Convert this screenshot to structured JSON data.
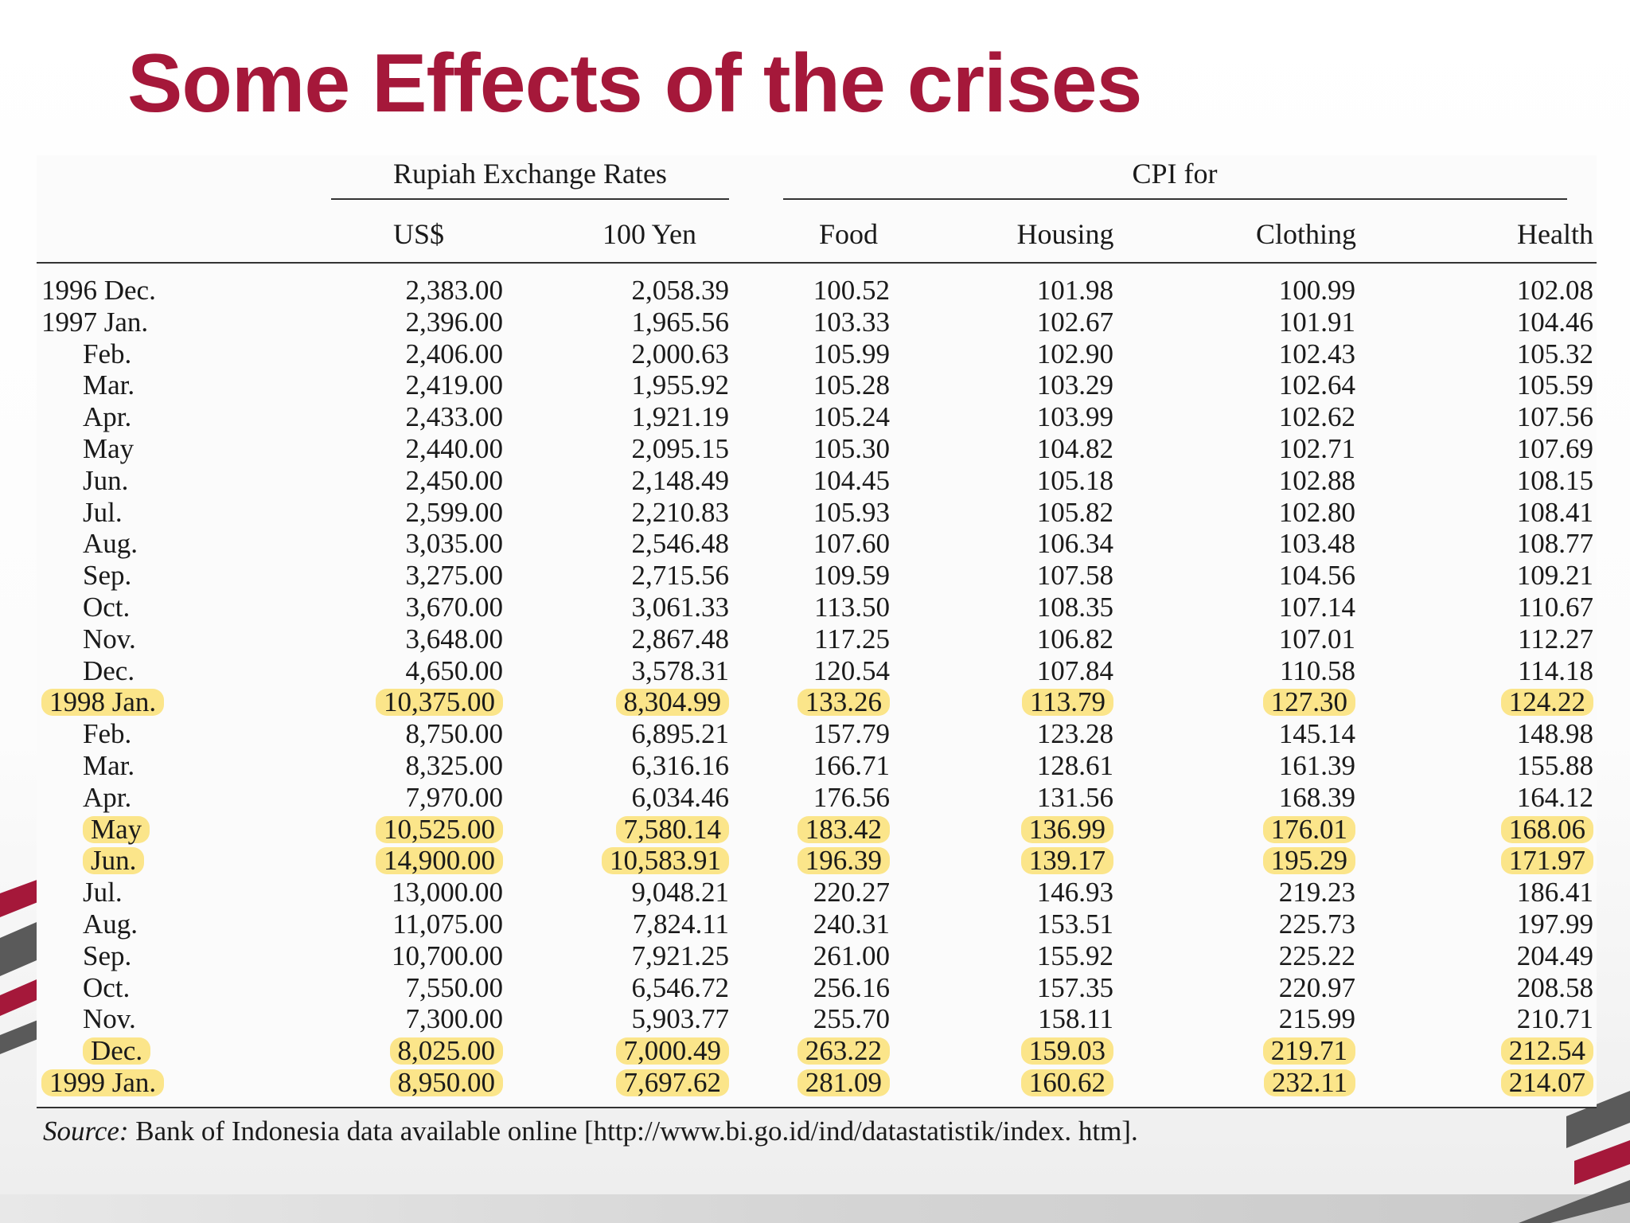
{
  "title": "Some Effects of the crises",
  "table": {
    "group_headers": {
      "rupiah": "Rupiah Exchange Rates",
      "cpi": "CPI for"
    },
    "columns": [
      "US$",
      "100 Yen",
      "Food",
      "Housing",
      "Clothing",
      "Health"
    ],
    "rows": [
      {
        "label": "1996 Dec.",
        "indent": false,
        "highlight": false,
        "values": [
          "2,383.00",
          "2,058.39",
          "100.52",
          "101.98",
          "100.99",
          "102.08"
        ]
      },
      {
        "label": "1997 Jan.",
        "indent": false,
        "highlight": false,
        "values": [
          "2,396.00",
          "1,965.56",
          "103.33",
          "102.67",
          "101.91",
          "104.46"
        ]
      },
      {
        "label": "Feb.",
        "indent": true,
        "highlight": false,
        "values": [
          "2,406.00",
          "2,000.63",
          "105.99",
          "102.90",
          "102.43",
          "105.32"
        ]
      },
      {
        "label": "Mar.",
        "indent": true,
        "highlight": false,
        "values": [
          "2,419.00",
          "1,955.92",
          "105.28",
          "103.29",
          "102.64",
          "105.59"
        ]
      },
      {
        "label": "Apr.",
        "indent": true,
        "highlight": false,
        "values": [
          "2,433.00",
          "1,921.19",
          "105.24",
          "103.99",
          "102.62",
          "107.56"
        ]
      },
      {
        "label": "May",
        "indent": true,
        "highlight": false,
        "values": [
          "2,440.00",
          "2,095.15",
          "105.30",
          "104.82",
          "102.71",
          "107.69"
        ]
      },
      {
        "label": "Jun.",
        "indent": true,
        "highlight": false,
        "values": [
          "2,450.00",
          "2,148.49",
          "104.45",
          "105.18",
          "102.88",
          "108.15"
        ]
      },
      {
        "label": "Jul.",
        "indent": true,
        "highlight": false,
        "values": [
          "2,599.00",
          "2,210.83",
          "105.93",
          "105.82",
          "102.80",
          "108.41"
        ]
      },
      {
        "label": "Aug.",
        "indent": true,
        "highlight": false,
        "values": [
          "3,035.00",
          "2,546.48",
          "107.60",
          "106.34",
          "103.48",
          "108.77"
        ]
      },
      {
        "label": "Sep.",
        "indent": true,
        "highlight": false,
        "values": [
          "3,275.00",
          "2,715.56",
          "109.59",
          "107.58",
          "104.56",
          "109.21"
        ]
      },
      {
        "label": "Oct.",
        "indent": true,
        "highlight": false,
        "values": [
          "3,670.00",
          "3,061.33",
          "113.50",
          "108.35",
          "107.14",
          "110.67"
        ]
      },
      {
        "label": "Nov.",
        "indent": true,
        "highlight": false,
        "values": [
          "3,648.00",
          "2,867.48",
          "117.25",
          "106.82",
          "107.01",
          "112.27"
        ]
      },
      {
        "label": "Dec.",
        "indent": true,
        "highlight": false,
        "values": [
          "4,650.00",
          "3,578.31",
          "120.54",
          "107.84",
          "110.58",
          "114.18"
        ]
      },
      {
        "label": "1998 Jan.",
        "indent": false,
        "highlight": true,
        "values": [
          "10,375.00",
          "8,304.99",
          "133.26",
          "113.79",
          "127.30",
          "124.22"
        ]
      },
      {
        "label": "Feb.",
        "indent": true,
        "highlight": false,
        "values": [
          "8,750.00",
          "6,895.21",
          "157.79",
          "123.28",
          "145.14",
          "148.98"
        ]
      },
      {
        "label": "Mar.",
        "indent": true,
        "highlight": false,
        "values": [
          "8,325.00",
          "6,316.16",
          "166.71",
          "128.61",
          "161.39",
          "155.88"
        ]
      },
      {
        "label": "Apr.",
        "indent": true,
        "highlight": false,
        "values": [
          "7,970.00",
          "6,034.46",
          "176.56",
          "131.56",
          "168.39",
          "164.12"
        ]
      },
      {
        "label": "May",
        "indent": true,
        "highlight": true,
        "values": [
          "10,525.00",
          "7,580.14",
          "183.42",
          "136.99",
          "176.01",
          "168.06"
        ]
      },
      {
        "label": "Jun.",
        "indent": true,
        "highlight": true,
        "values": [
          "14,900.00",
          "10,583.91",
          "196.39",
          "139.17",
          "195.29",
          "171.97"
        ]
      },
      {
        "label": "Jul.",
        "indent": true,
        "highlight": false,
        "values": [
          "13,000.00",
          "9,048.21",
          "220.27",
          "146.93",
          "219.23",
          "186.41"
        ]
      },
      {
        "label": "Aug.",
        "indent": true,
        "highlight": false,
        "values": [
          "11,075.00",
          "7,824.11",
          "240.31",
          "153.51",
          "225.73",
          "197.99"
        ]
      },
      {
        "label": "Sep.",
        "indent": true,
        "highlight": false,
        "values": [
          "10,700.00",
          "7,921.25",
          "261.00",
          "155.92",
          "225.22",
          "204.49"
        ]
      },
      {
        "label": "Oct.",
        "indent": true,
        "highlight": false,
        "values": [
          "7,550.00",
          "6,546.72",
          "256.16",
          "157.35",
          "220.97",
          "208.58"
        ]
      },
      {
        "label": "Nov.",
        "indent": true,
        "highlight": false,
        "values": [
          "7,300.00",
          "5,903.77",
          "255.70",
          "158.11",
          "215.99",
          "210.71"
        ]
      },
      {
        "label": "Dec.",
        "indent": true,
        "highlight": true,
        "values": [
          "8,025.00",
          "7,000.49",
          "263.22",
          "159.03",
          "219.71",
          "212.54"
        ]
      },
      {
        "label": "1999 Jan.",
        "indent": false,
        "highlight": true,
        "values": [
          "8,950.00",
          "7,697.62",
          "281.09",
          "160.62",
          "232.11",
          "214.07"
        ]
      }
    ]
  },
  "source": {
    "label": "Source:",
    "text": " Bank of Indonesia data available online [http://www.bi.go.id/ind/datastatistik/index. htm]."
  },
  "colors": {
    "title": "#a5183a",
    "highlight": "#fbe58a",
    "accent_red": "#a5183a",
    "accent_gray": "#5a5a5a"
  }
}
